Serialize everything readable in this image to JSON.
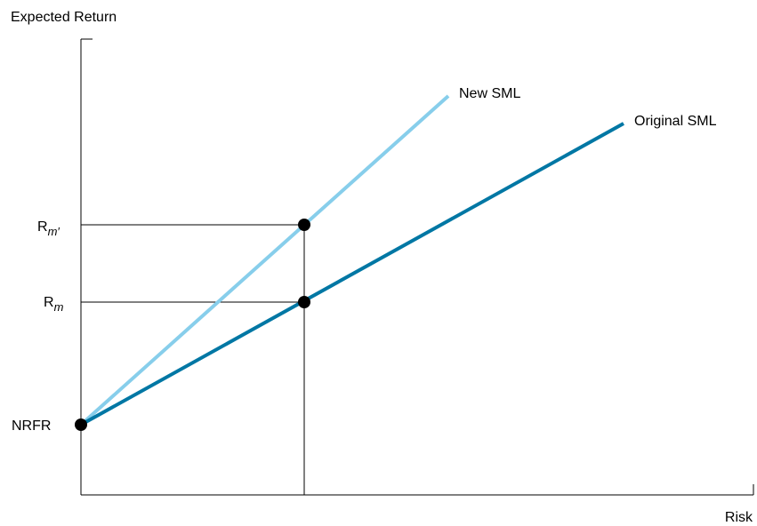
{
  "axes": {
    "y_label": "Expected Return",
    "x_label": "Risk"
  },
  "lines": {
    "new_sml": {
      "label": "New SML",
      "color": "#87CEEB"
    },
    "original_sml": {
      "label": "Original SML",
      "color": "#0077A4"
    }
  },
  "y_ticks": {
    "rm_prime": {
      "base": "R",
      "sub": "m′"
    },
    "rm": {
      "base": "R",
      "sub": "m"
    },
    "nrfr": "NRFR"
  }
}
